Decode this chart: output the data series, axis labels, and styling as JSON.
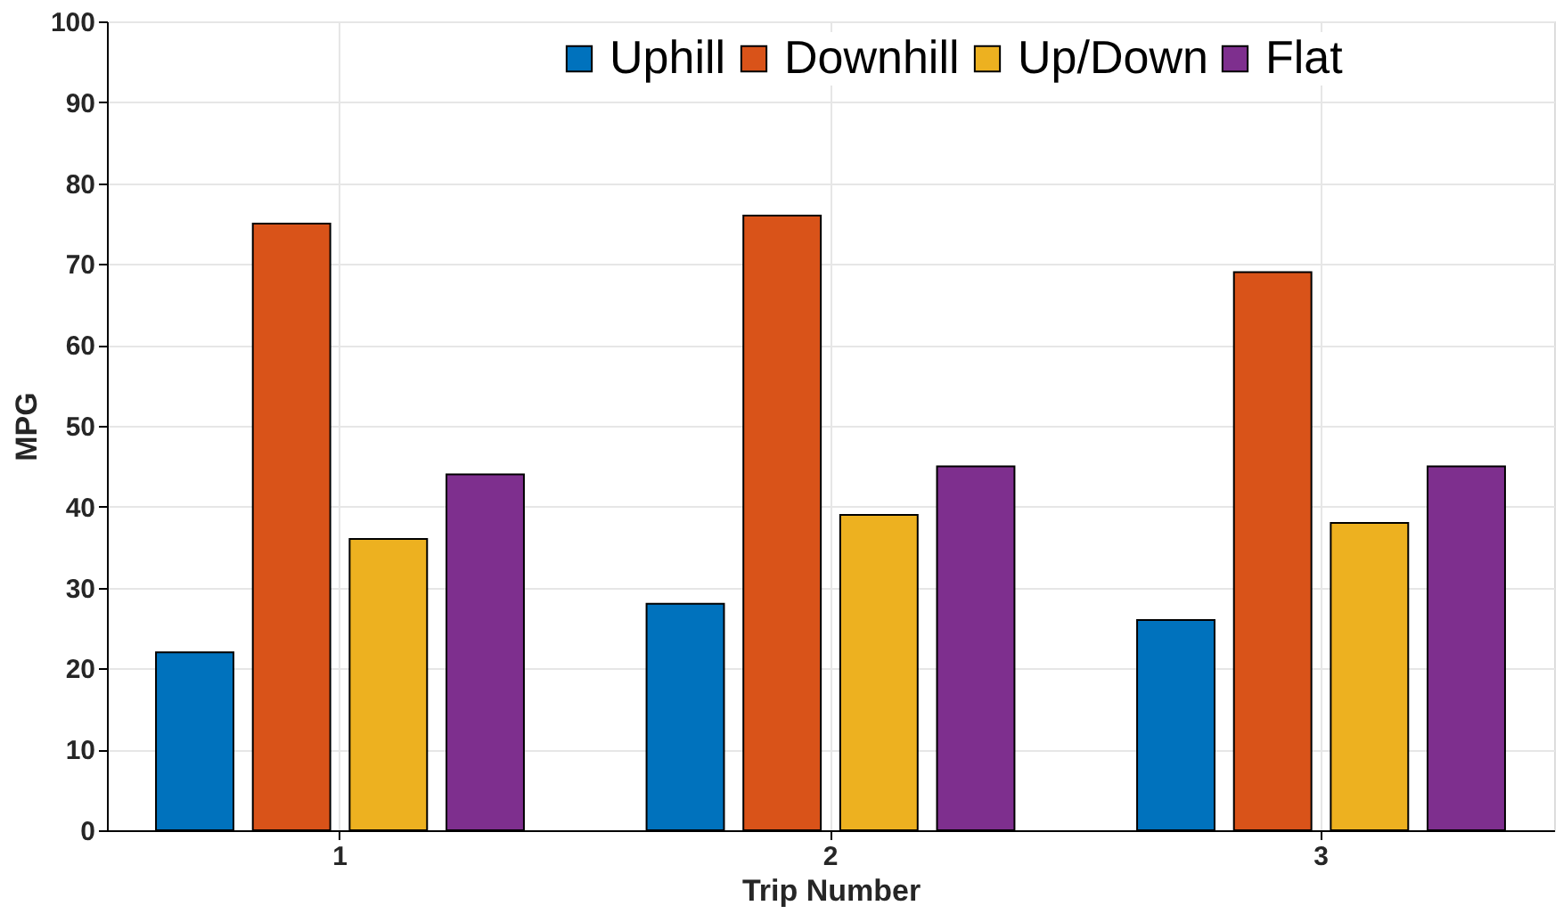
{
  "chart_data": {
    "type": "bar",
    "xlabel": "Trip Number",
    "ylabel": "MPG",
    "categories": [
      "1",
      "2",
      "3"
    ],
    "series": [
      {
        "name": "Uphill",
        "color": "#0072bd",
        "values": [
          22,
          28,
          26
        ]
      },
      {
        "name": "Downhill",
        "color": "#d95319",
        "values": [
          75,
          76,
          69
        ]
      },
      {
        "name": "Up/Down",
        "color": "#edb120",
        "values": [
          36,
          39,
          38
        ]
      },
      {
        "name": "Flat",
        "color": "#7e2f8e",
        "values": [
          44,
          45,
          45
        ]
      }
    ],
    "ylim": [
      0,
      100
    ],
    "yticks": [
      0,
      10,
      20,
      30,
      40,
      50,
      60,
      70,
      80,
      90,
      100
    ],
    "grid": true,
    "legend": "top"
  }
}
